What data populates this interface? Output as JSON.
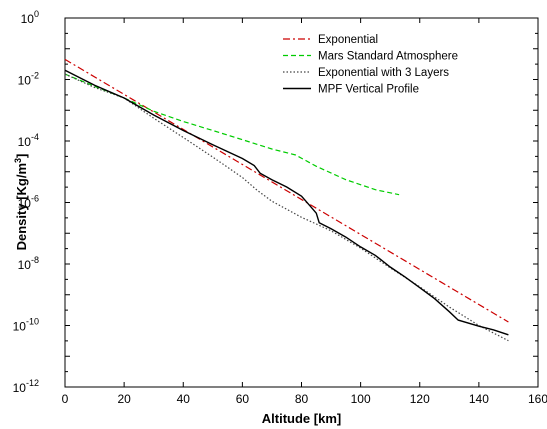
{
  "chart_data": {
    "type": "line",
    "xlabel": "Altitude [km]",
    "ylabel_main": "Density [Kg/m",
    "ylabel_sup": "3",
    "ylabel_close": "]",
    "xlim": [
      0,
      160
    ],
    "ylim_log10": [
      -12,
      0
    ],
    "yscale": "log",
    "grid": false,
    "legend_position": "top-right",
    "x_ticks": [
      {
        "value": 0,
        "label": "0"
      },
      {
        "value": 20,
        "label": "20"
      },
      {
        "value": 40,
        "label": "40"
      },
      {
        "value": 60,
        "label": "60"
      },
      {
        "value": 80,
        "label": "80"
      },
      {
        "value": 100,
        "label": "100"
      },
      {
        "value": 120,
        "label": "120"
      },
      {
        "value": 140,
        "label": "140"
      },
      {
        "value": 160,
        "label": "160"
      }
    ],
    "y_ticks": [
      {
        "exp": 0,
        "base": "10",
        "sup": "0"
      },
      {
        "exp": -2,
        "base": "10",
        "sup": "-2"
      },
      {
        "exp": -4,
        "base": "10",
        "sup": "-4"
      },
      {
        "exp": -6,
        "base": "10",
        "sup": "-6"
      },
      {
        "exp": -8,
        "base": "10",
        "sup": "-8"
      },
      {
        "exp": -10,
        "base": "10",
        "sup": "-10"
      },
      {
        "exp": -12,
        "base": "10",
        "sup": "-12"
      }
    ],
    "series": [
      {
        "name": "Exponential",
        "color": "#cc0000",
        "dash": "7,3,2,3",
        "x": [
          0,
          150
        ],
        "y": [
          0.045,
          1.3e-10
        ]
      },
      {
        "name": "Mars Standard Atmosphere",
        "color": "#00cc00",
        "dash": "5,3",
        "x": [
          0,
          10,
          20,
          30,
          40,
          50,
          60,
          70,
          78,
          85,
          95,
          105,
          113
        ],
        "y": [
          0.015,
          0.006,
          0.0025,
          0.00093,
          0.00043,
          0.00022,
          0.00011,
          5.5e-05,
          3.5e-05,
          1.5e-05,
          5.5e-06,
          2.6e-06,
          1.8e-06
        ]
      },
      {
        "name": "Exponential with 3 Layers",
        "color": "#444444",
        "dash": "1.5,2",
        "x": [
          0,
          10,
          20,
          30,
          40,
          50,
          60,
          65,
          70,
          80,
          85,
          90,
          100,
          110,
          120,
          130,
          140,
          150
        ],
        "y": [
          0.015,
          0.0055,
          0.0025,
          0.00055,
          0.00013,
          3e-05,
          6.5e-06,
          2.5e-06,
          1.1e-06,
          3.3e-07,
          2e-07,
          1.2e-07,
          3.3e-08,
          7.5e-09,
          1.8e-09,
          4e-10,
          1e-10,
          3.2e-11
        ]
      },
      {
        "name": "MPF Vertical Profile",
        "color": "#000000",
        "dash": "",
        "x": [
          0,
          10,
          20,
          30,
          40,
          50,
          60,
          64,
          66,
          70,
          75,
          80,
          83,
          85,
          86,
          90,
          95,
          100,
          105,
          110,
          115,
          120,
          125,
          130,
          133,
          140,
          145,
          150
        ],
        "y": [
          0.02,
          0.0065,
          0.0025,
          0.0007,
          0.00022,
          7.5e-05,
          2.7e-05,
          1.6e-05,
          9e-06,
          5.5e-06,
          3.2e-06,
          1.6e-06,
          7.5e-07,
          4.5e-07,
          2.2e-07,
          1.4e-07,
          7.5e-08,
          3.6e-08,
          1.9e-08,
          8e-09,
          3.8e-09,
          1.7e-09,
          7.5e-10,
          2.8e-10,
          1.5e-10,
          9.5e-11,
          7.2e-11,
          5e-11
        ]
      }
    ]
  }
}
